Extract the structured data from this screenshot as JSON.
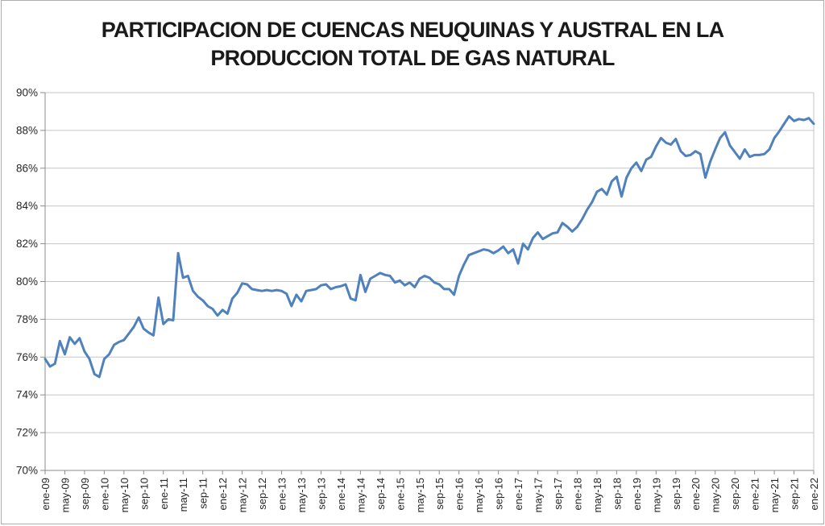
{
  "title": {
    "line1": "PARTICIPACION DE CUENCAS NEUQUINAS Y AUSTRAL EN LA",
    "line2": "PRODUCCION TOTAL DE GAS NATURAL"
  },
  "chart_data": {
    "type": "line",
    "title": "PARTICIPACION DE CUENCAS NEUQUINAS Y AUSTRAL EN LA PRODUCCION TOTAL DE GAS NATURAL",
    "xlabel": "",
    "ylabel": "",
    "ylim": [
      70,
      90
    ],
    "y_tick_step": 2,
    "y_tick_labels": [
      "70%",
      "72%",
      "74%",
      "76%",
      "78%",
      "80%",
      "82%",
      "84%",
      "86%",
      "88%",
      "90%"
    ],
    "grid": "horizontal",
    "legend": "none",
    "x_frequency": "monthly",
    "x_start": "ene-09",
    "x_end": "ene-22",
    "x_tick_interval_months": 4,
    "x_tick_labels": [
      "ene-09",
      "may-09",
      "sep-09",
      "ene-10",
      "may-10",
      "sep-10",
      "ene-11",
      "may-11",
      "sep-11",
      "ene-12",
      "may-12",
      "sep-12",
      "ene-13",
      "may-13",
      "sep-13",
      "ene-14",
      "may-14",
      "sep-14",
      "ene-15",
      "may-15",
      "sep-15",
      "ene-16",
      "may-16",
      "sep-16",
      "ene-17",
      "may-17",
      "sep-17",
      "ene-18",
      "may-18",
      "sep-18",
      "ene-19",
      "may-19",
      "sep-19",
      "ene-20",
      "may-20",
      "sep-20",
      "ene-21",
      "may-21",
      "sep-21",
      "ene-22"
    ],
    "series": [
      {
        "values": [
          75.9,
          75.5,
          75.65,
          76.85,
          76.15,
          77.05,
          76.7,
          77.0,
          76.3,
          75.9,
          75.1,
          74.95,
          75.9,
          76.15,
          76.65,
          76.8,
          76.9,
          77.25,
          77.6,
          78.1,
          77.5,
          77.3,
          77.15,
          79.15,
          77.75,
          78.0,
          77.95,
          81.5,
          80.2,
          80.3,
          79.5,
          79.2,
          79.0,
          78.7,
          78.55,
          78.2,
          78.5,
          78.3,
          79.1,
          79.4,
          79.9,
          79.85,
          79.6,
          79.55,
          79.5,
          79.55,
          79.5,
          79.55,
          79.5,
          79.35,
          78.7,
          79.3,
          78.95,
          79.5,
          79.55,
          79.6,
          79.8,
          79.85,
          79.6,
          79.7,
          79.75,
          79.85,
          79.1,
          79.0,
          80.35,
          79.45,
          80.15,
          80.3,
          80.45,
          80.35,
          80.3,
          79.95,
          80.05,
          79.8,
          79.95,
          79.7,
          80.15,
          80.3,
          80.2,
          79.95,
          79.85,
          79.6,
          79.6,
          79.3,
          80.3,
          80.9,
          81.4,
          81.5,
          81.6,
          81.7,
          81.65,
          81.5,
          81.65,
          81.85,
          81.5,
          81.7,
          80.95,
          82.0,
          81.7,
          82.3,
          82.6,
          82.25,
          82.4,
          82.55,
          82.6,
          83.1,
          82.9,
          82.65,
          82.9,
          83.3,
          83.8,
          84.2,
          84.75,
          84.9,
          84.6,
          85.3,
          85.55,
          84.5,
          85.5,
          86.0,
          86.3,
          85.85,
          86.45,
          86.6,
          87.15,
          87.6,
          87.35,
          87.25,
          87.55,
          86.9,
          86.65,
          86.7,
          86.9,
          86.75,
          85.5,
          86.35,
          87.0,
          87.6,
          87.9,
          87.2,
          86.85,
          86.5,
          87.0,
          86.6,
          86.7,
          86.7,
          86.75,
          87.0,
          87.6,
          87.95,
          88.35,
          88.75,
          88.5,
          88.6,
          88.55,
          88.65,
          88.35
        ]
      }
    ],
    "colors": {
      "line": "#4F81BD",
      "grid": "#C6C6C6",
      "axis": "#8C8C8C",
      "text": "#262626"
    }
  }
}
